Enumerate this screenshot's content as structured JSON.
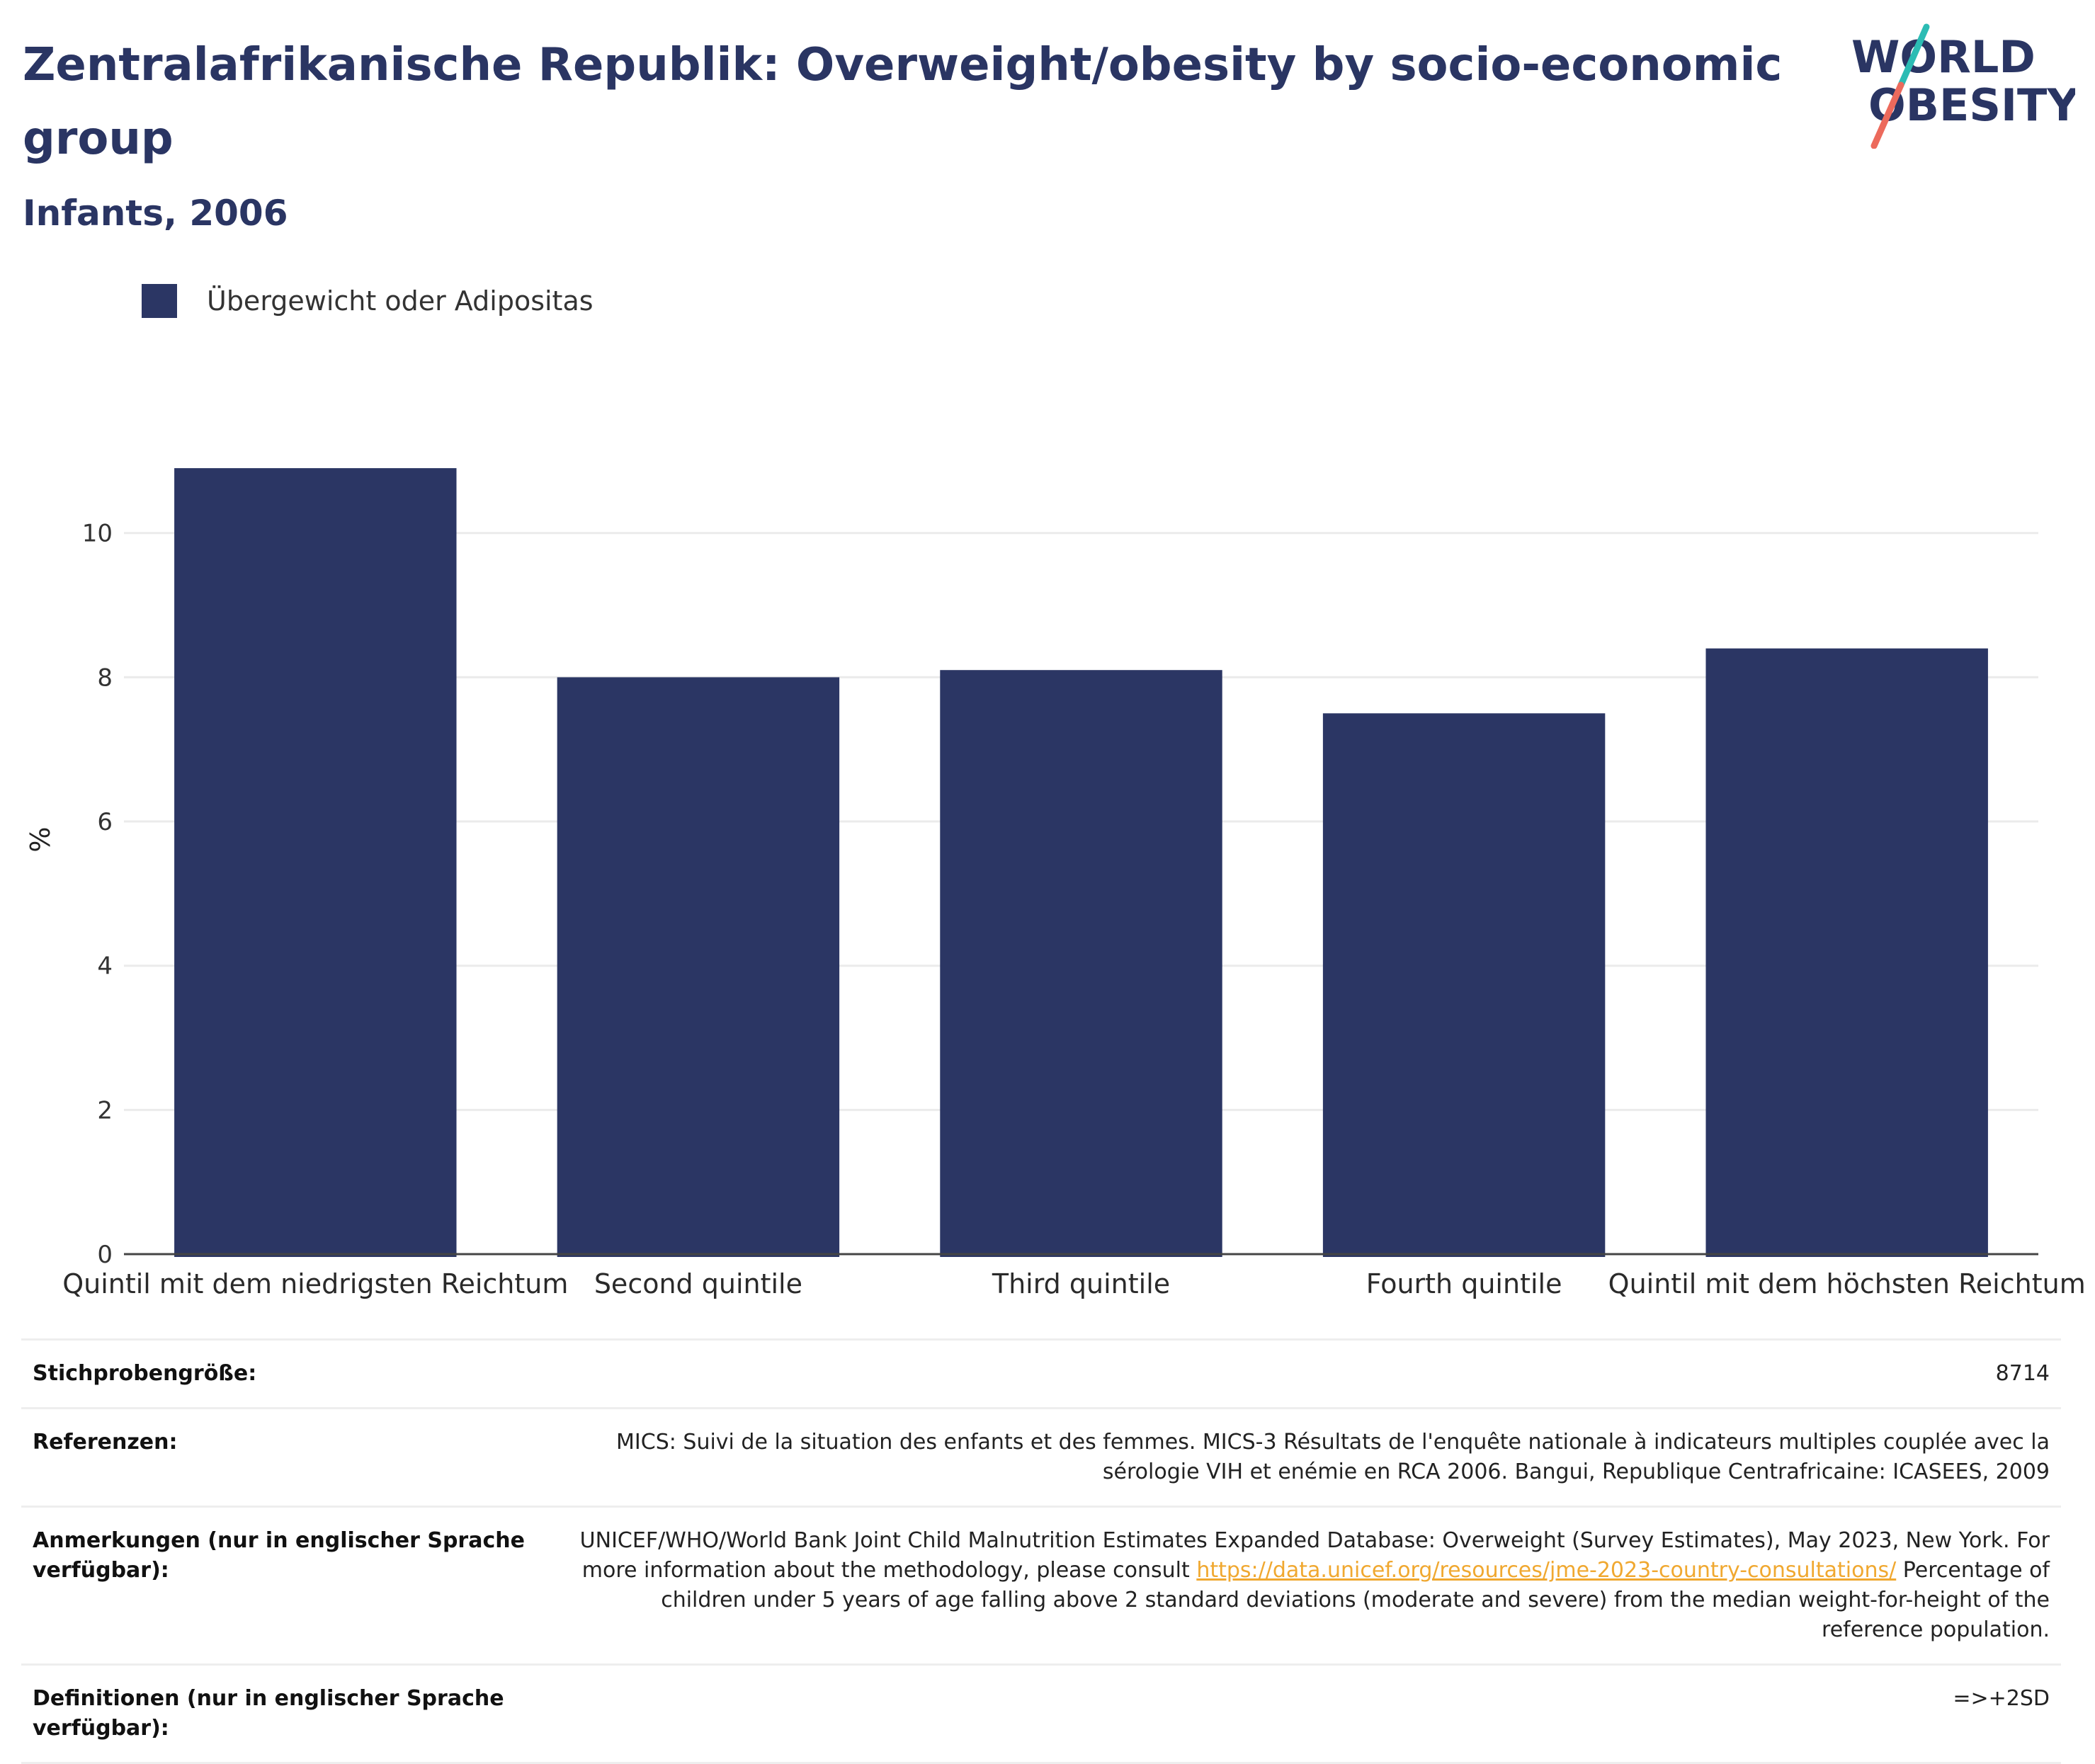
{
  "header": {
    "title": "Zentralafrikanische Republik: Overweight/obesity by socio-economic group",
    "subtitle": "Infants, 2006"
  },
  "logo": {
    "line1": "WORLD",
    "line2": "OBESITY",
    "icon": "world-obesity-logo"
  },
  "colors": {
    "bar": "#2b3664",
    "text": "#2a3563",
    "grid": "#ebebeb",
    "link": "#f0a830",
    "logo_teal": "#2cbcb4",
    "logo_coral": "#ec6a5c"
  },
  "legend": {
    "label": "Übergewicht oder Adipositas"
  },
  "chart_data": {
    "type": "bar",
    "categories": [
      "Quintil mit dem niedrigsten Reichtum",
      "Second quintile",
      "Third quintile",
      "Fourth quintile",
      "Quintil mit dem höchsten Reichtum"
    ],
    "series": [
      {
        "name": "Übergewicht oder Adipositas",
        "values": [
          10.9,
          8.0,
          8.1,
          7.5,
          8.4
        ]
      }
    ],
    "ylabel": "%",
    "ylim": [
      0,
      11.5
    ],
    "yticks": [
      0,
      2,
      4,
      6,
      8,
      10
    ],
    "grid": true,
    "legend_position": "top-left"
  },
  "info": {
    "sample_label": "Stichprobengröße:",
    "sample_value": "8714",
    "refs_label": "Referenzen:",
    "refs_value": "MICS: Suivi de la situation des enfants et des femmes. MICS-3 Résultats de l'enquête nationale à indicateurs multiples couplée avec la sérologie VIH et enémie en RCA 2006. Bangui, Republique Centrafricaine: ICASEES, 2009",
    "notes_label": "Anmerkungen (nur in englischer Sprache verfügbar):",
    "notes_pre": "UNICEF/WHO/World Bank Joint Child Malnutrition Estimates Expanded Database: Overweight (Survey Estimates), May 2023, New York. For more information about the methodology, please consult ",
    "notes_link": "https://data.unicef.org/resources/jme-2023-country-consultations/",
    "notes_post": " Percentage of children under 5 years of age falling above 2 standard deviations (moderate and severe) from the median weight-for-height of the reference population.",
    "defs_label": "Definitionen (nur in englischer Sprache verfügbar):",
    "defs_value": "=>+2SD"
  }
}
